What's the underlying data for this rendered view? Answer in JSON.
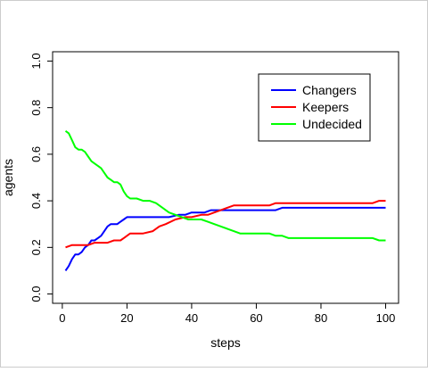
{
  "chart_data": {
    "type": "line",
    "title": "",
    "xlabel": "steps",
    "ylabel": "agents",
    "xlim": [
      -3,
      104
    ],
    "ylim": [
      -0.04,
      1.04
    ],
    "x_ticks": [
      0,
      20,
      40,
      60,
      80,
      100
    ],
    "y_ticks": [
      0.0,
      0.2,
      0.4,
      0.6,
      0.8,
      1.0
    ],
    "x_tick_labels": [
      "0",
      "20",
      "40",
      "60",
      "80",
      "100"
    ],
    "y_tick_labels": [
      "0.0",
      "0.2",
      "0.4",
      "0.6",
      "0.8",
      "1.0"
    ],
    "grid": false,
    "legend_position": "top-right",
    "series": [
      {
        "name": "Changers",
        "color": "#0000ff",
        "points": [
          [
            1,
            0.1
          ],
          [
            2,
            0.12
          ],
          [
            3,
            0.15
          ],
          [
            4,
            0.17
          ],
          [
            5,
            0.17
          ],
          [
            6,
            0.18
          ],
          [
            7,
            0.2
          ],
          [
            8,
            0.21
          ],
          [
            9,
            0.23
          ],
          [
            10,
            0.23
          ],
          [
            11,
            0.24
          ],
          [
            12,
            0.25
          ],
          [
            13,
            0.27
          ],
          [
            14,
            0.29
          ],
          [
            15,
            0.3
          ],
          [
            16,
            0.3
          ],
          [
            17,
            0.3
          ],
          [
            18,
            0.31
          ],
          [
            19,
            0.32
          ],
          [
            20,
            0.33
          ],
          [
            25,
            0.33
          ],
          [
            30,
            0.33
          ],
          [
            33,
            0.33
          ],
          [
            36,
            0.34
          ],
          [
            38,
            0.34
          ],
          [
            40,
            0.35
          ],
          [
            42,
            0.35
          ],
          [
            44,
            0.35
          ],
          [
            46,
            0.36
          ],
          [
            48,
            0.36
          ],
          [
            50,
            0.36
          ],
          [
            60,
            0.36
          ],
          [
            66,
            0.36
          ],
          [
            68,
            0.37
          ],
          [
            80,
            0.37
          ],
          [
            90,
            0.37
          ],
          [
            100,
            0.37
          ]
        ]
      },
      {
        "name": "Keepers",
        "color": "#ff0000",
        "points": [
          [
            1,
            0.2
          ],
          [
            3,
            0.21
          ],
          [
            5,
            0.21
          ],
          [
            8,
            0.21
          ],
          [
            10,
            0.22
          ],
          [
            14,
            0.22
          ],
          [
            16,
            0.23
          ],
          [
            18,
            0.23
          ],
          [
            19,
            0.24
          ],
          [
            20,
            0.25
          ],
          [
            21,
            0.26
          ],
          [
            25,
            0.26
          ],
          [
            28,
            0.27
          ],
          [
            30,
            0.29
          ],
          [
            32,
            0.3
          ],
          [
            35,
            0.32
          ],
          [
            38,
            0.33
          ],
          [
            40,
            0.33
          ],
          [
            43,
            0.34
          ],
          [
            45,
            0.34
          ],
          [
            47,
            0.35
          ],
          [
            49,
            0.36
          ],
          [
            51,
            0.37
          ],
          [
            53,
            0.38
          ],
          [
            60,
            0.38
          ],
          [
            64,
            0.38
          ],
          [
            66,
            0.39
          ],
          [
            70,
            0.39
          ],
          [
            80,
            0.39
          ],
          [
            90,
            0.39
          ],
          [
            96,
            0.39
          ],
          [
            98,
            0.4
          ],
          [
            100,
            0.4
          ]
        ]
      },
      {
        "name": "Undecided",
        "color": "#00ff00",
        "points": [
          [
            1,
            0.7
          ],
          [
            2,
            0.69
          ],
          [
            3,
            0.66
          ],
          [
            4,
            0.63
          ],
          [
            5,
            0.62
          ],
          [
            6,
            0.62
          ],
          [
            7,
            0.61
          ],
          [
            8,
            0.59
          ],
          [
            9,
            0.57
          ],
          [
            10,
            0.56
          ],
          [
            11,
            0.55
          ],
          [
            12,
            0.54
          ],
          [
            13,
            0.52
          ],
          [
            14,
            0.5
          ],
          [
            15,
            0.49
          ],
          [
            16,
            0.48
          ],
          [
            17,
            0.48
          ],
          [
            18,
            0.47
          ],
          [
            19,
            0.44
          ],
          [
            20,
            0.42
          ],
          [
            21,
            0.41
          ],
          [
            23,
            0.41
          ],
          [
            25,
            0.4
          ],
          [
            27,
            0.4
          ],
          [
            29,
            0.39
          ],
          [
            31,
            0.37
          ],
          [
            33,
            0.35
          ],
          [
            35,
            0.34
          ],
          [
            37,
            0.33
          ],
          [
            39,
            0.32
          ],
          [
            43,
            0.32
          ],
          [
            45,
            0.31
          ],
          [
            47,
            0.3
          ],
          [
            49,
            0.29
          ],
          [
            51,
            0.28
          ],
          [
            53,
            0.27
          ],
          [
            55,
            0.26
          ],
          [
            60,
            0.26
          ],
          [
            64,
            0.26
          ],
          [
            66,
            0.25
          ],
          [
            68,
            0.25
          ],
          [
            70,
            0.24
          ],
          [
            80,
            0.24
          ],
          [
            90,
            0.24
          ],
          [
            96,
            0.24
          ],
          [
            98,
            0.23
          ],
          [
            100,
            0.23
          ]
        ]
      }
    ]
  }
}
